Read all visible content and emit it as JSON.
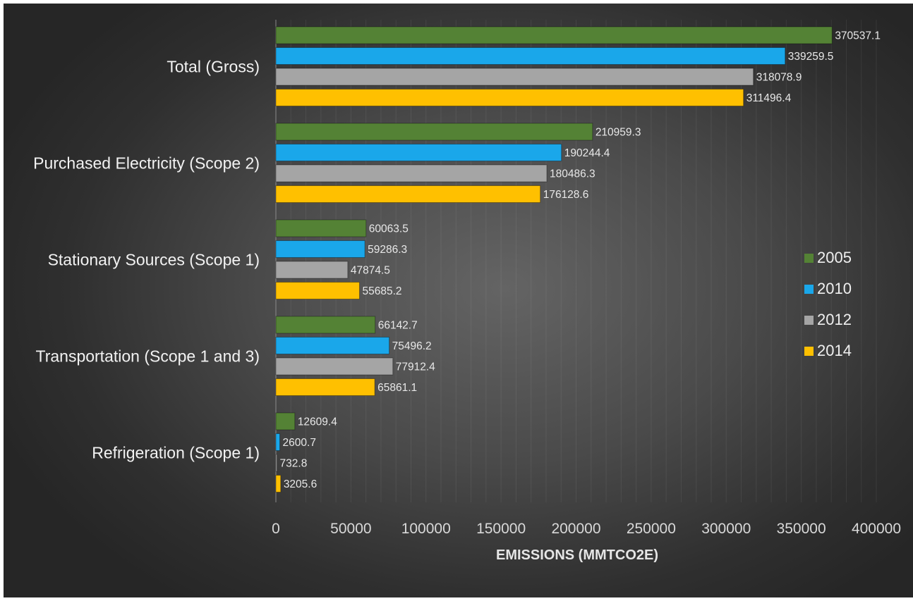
{
  "chart_data": {
    "type": "bar",
    "orientation": "horizontal",
    "categories": [
      "Total (Gross)",
      "Purchased Electricity (Scope 2)",
      "Stationary Sources (Scope 1)",
      "Transportation (Scope 1 and 3)",
      "Refrigeration (Scope 1)"
    ],
    "series": [
      {
        "name": "2005",
        "color": "#548235",
        "values": [
          370537.1,
          210959.3,
          60063.5,
          66142.7,
          12609.4
        ]
      },
      {
        "name": "2010",
        "color": "#1aa7ea",
        "values": [
          339259.5,
          190244.4,
          59286.3,
          75496.2,
          2600.7
        ]
      },
      {
        "name": "2012",
        "color": "#a5a5a5",
        "values": [
          318078.9,
          180486.3,
          47874.5,
          77912.4,
          732.8
        ]
      },
      {
        "name": "2014",
        "color": "#ffc000",
        "values": [
          311496.4,
          176128.6,
          55685.2,
          65861.1,
          3205.6
        ]
      }
    ],
    "xlim": [
      0,
      400000
    ],
    "xticks": [
      0,
      50000,
      100000,
      150000,
      200000,
      250000,
      300000,
      350000,
      400000
    ],
    "xlabel": "EMISSIONS (MMTCO2E)",
    "ylabel": "",
    "grid": "vertical",
    "legend_position": "right"
  }
}
